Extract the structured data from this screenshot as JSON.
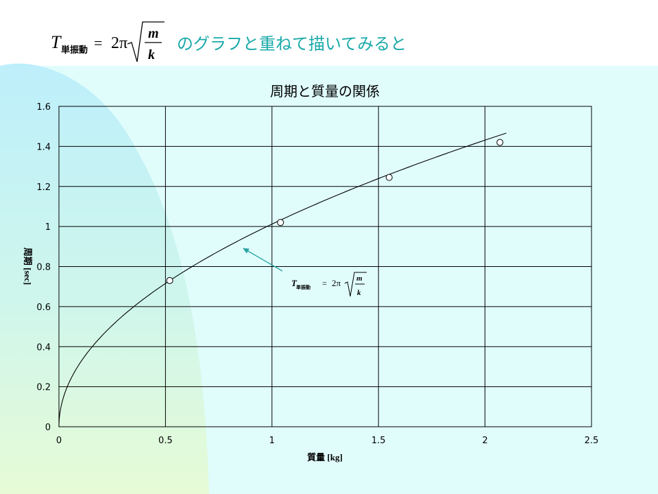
{
  "header": {
    "formula": {
      "T": "T",
      "subscript": "単振動",
      "equals": "=",
      "coef": "2π",
      "numerator": "m",
      "denominator": "k"
    },
    "caption": "のグラフと重ねて描いてみると"
  },
  "colors": {
    "caption": "#1aa9aa",
    "arrow": "#2aa3a3",
    "plot_bg": "#e0fdfc",
    "left_blob": "#bfeffa"
  },
  "chart_data": {
    "type": "scatter",
    "title": "周期と質量の関係",
    "xlabel": "質量 [kg]",
    "ylabel": "周期 [sec]",
    "xlim": [
      0,
      2.5
    ],
    "ylim": [
      0,
      1.6
    ],
    "xticks": [
      "0",
      "0.5",
      "1",
      "1.5",
      "2",
      "2.5"
    ],
    "yticks": [
      "0",
      "0.2",
      "0.4",
      "0.6",
      "0.8",
      "1",
      "1.2",
      "1.4",
      "1.6"
    ],
    "grid": true,
    "series": [
      {
        "type": "scatter",
        "marker": "open-circle",
        "x": [
          0.52,
          1.04,
          1.55,
          2.07
        ],
        "y": [
          0.73,
          1.02,
          1.245,
          1.42
        ]
      },
      {
        "type": "line",
        "function": "sqrt",
        "coefficient": 1.012,
        "x_range": [
          0,
          2.1
        ]
      }
    ],
    "annotation": {
      "T": "T",
      "subscript": "単振動",
      "equals": "=",
      "coef": "2π",
      "numerator": "m",
      "denominator": "k"
    }
  }
}
